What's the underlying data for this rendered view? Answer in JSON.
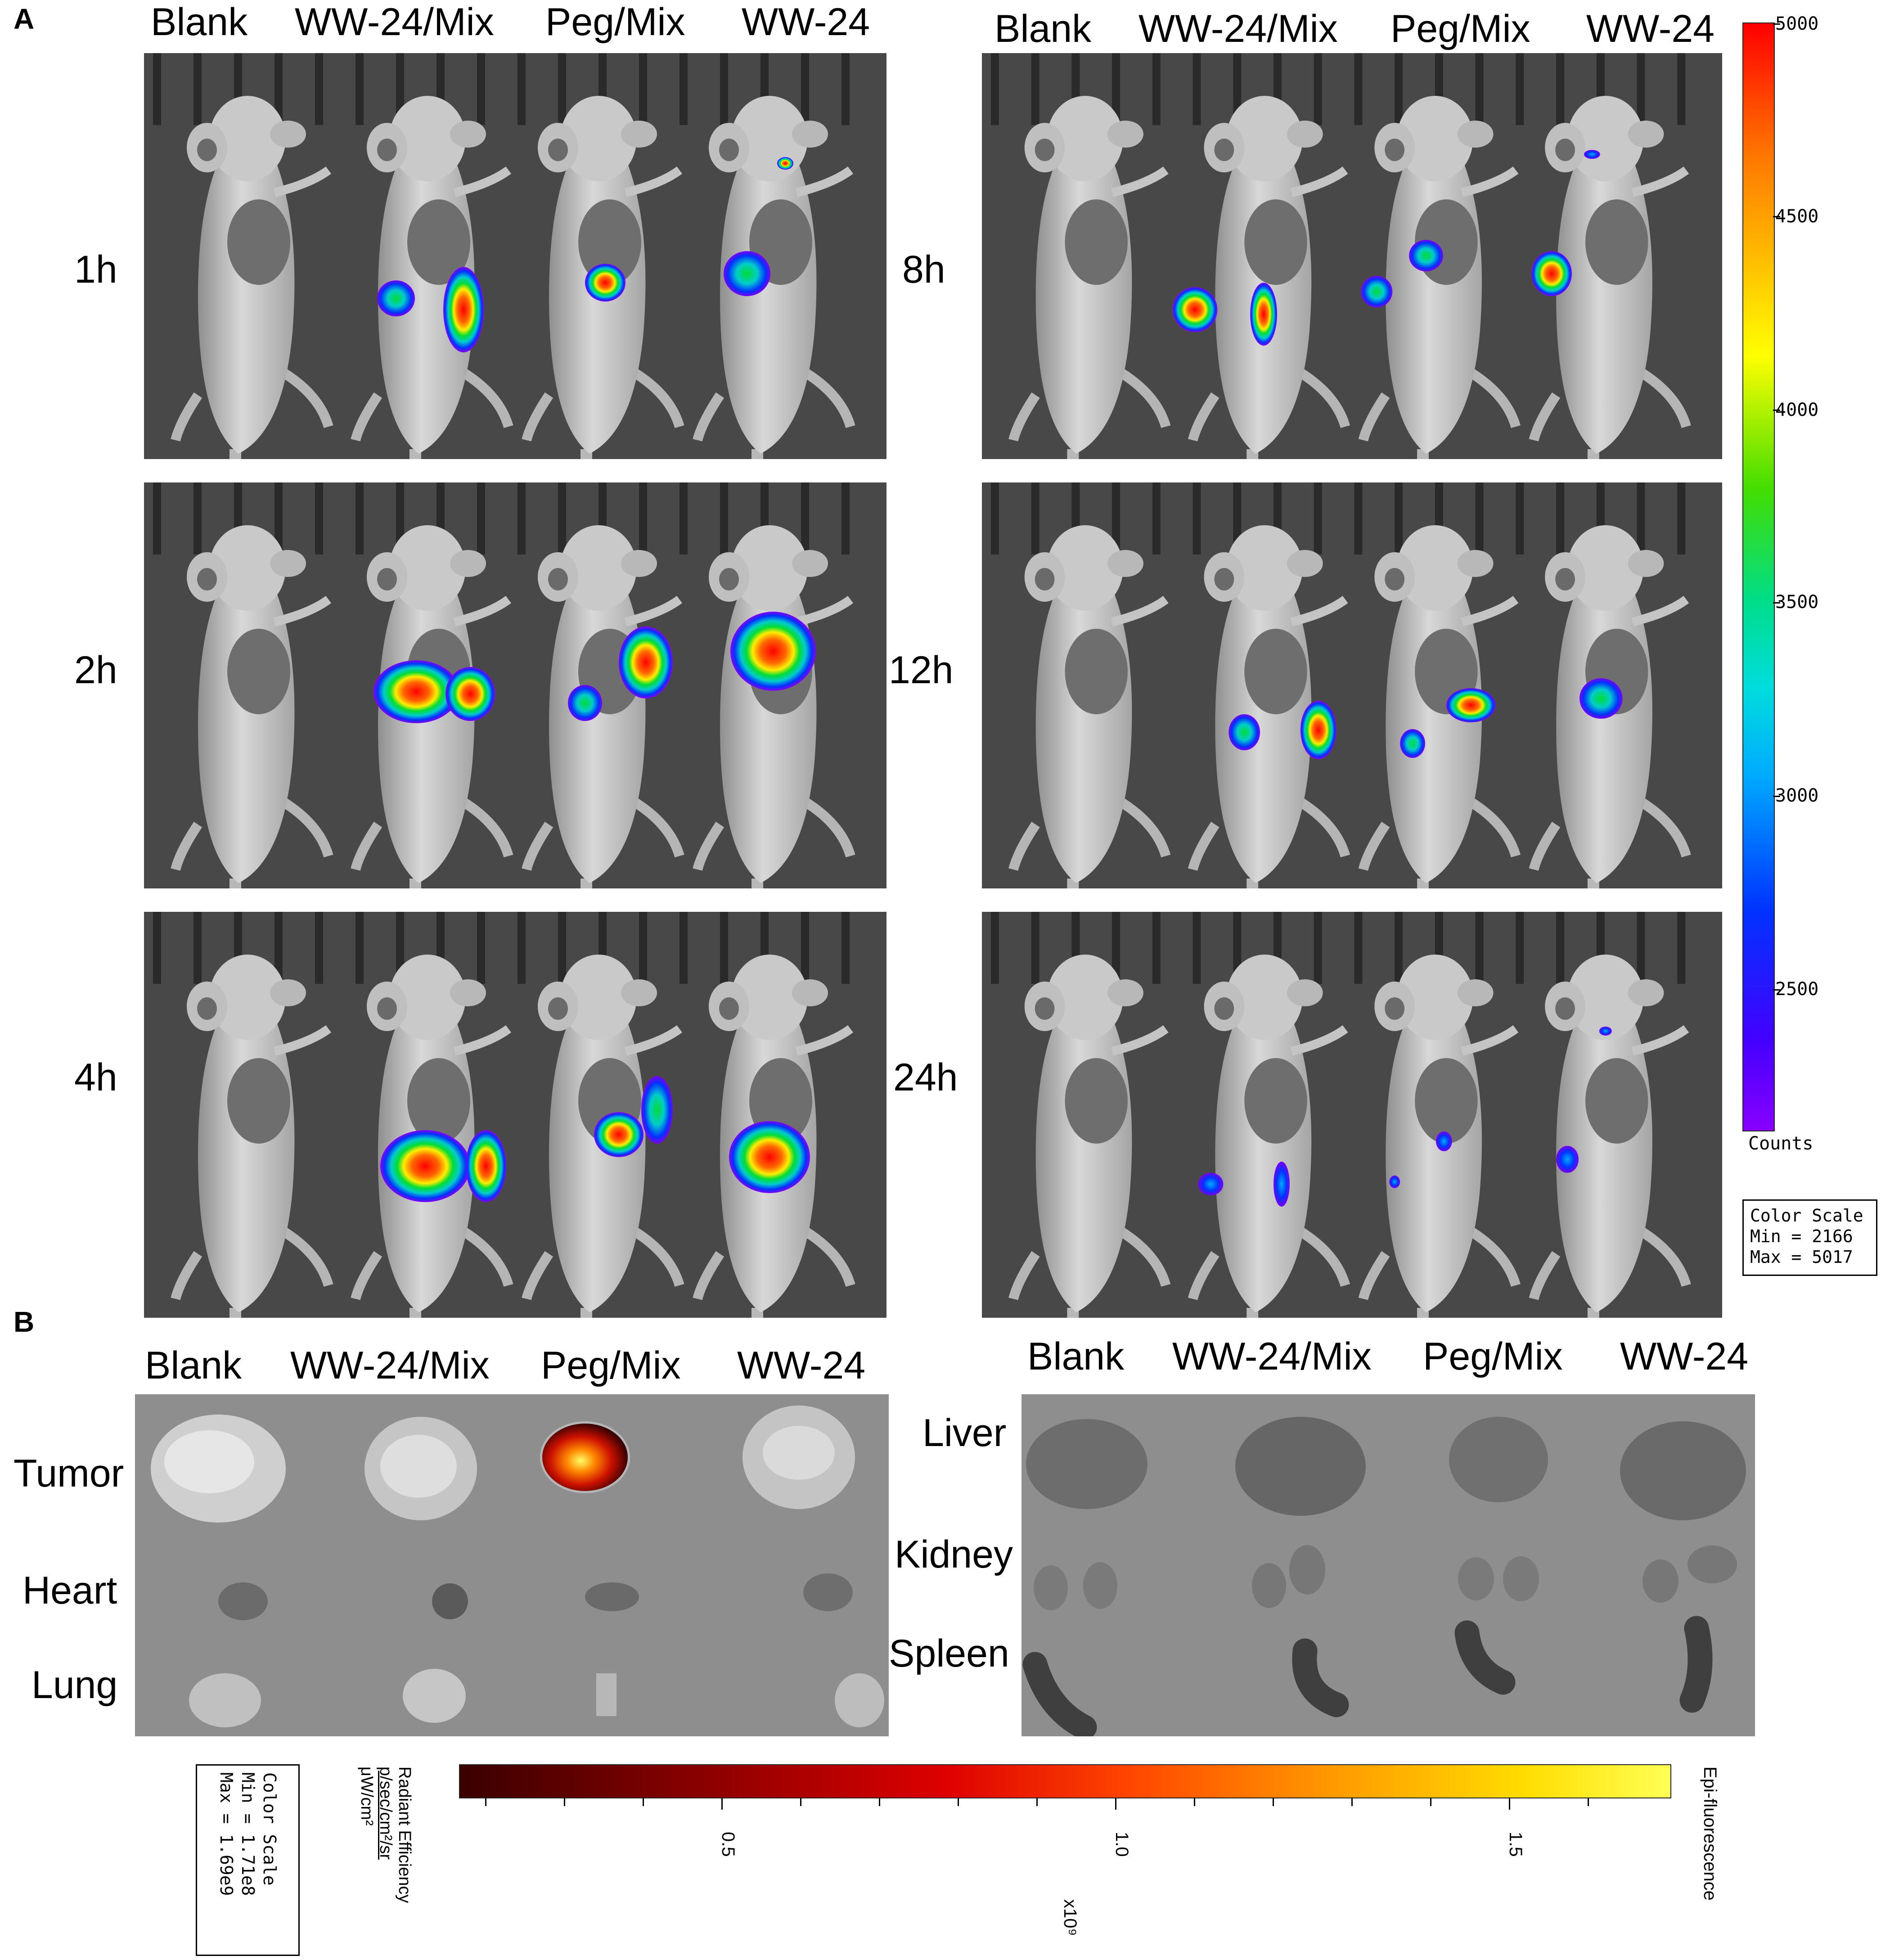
{
  "panel_a": {
    "letter": "A",
    "columns_left": [
      "Blank",
      "WW-24/Mix",
      "Peg/Mix",
      "WW-24"
    ],
    "columns_right": [
      "Blank",
      "WW-24/Mix",
      "Peg/Mix",
      "WW-24"
    ],
    "time_points_left": [
      "1h",
      "2h",
      "4h"
    ],
    "time_points_right": [
      "8h",
      "12h",
      "24h"
    ],
    "color_scale": {
      "ticks": [
        "5000",
        "4500",
        "4000",
        "3500",
        "3000",
        "2500"
      ],
      "unit_label": "Counts",
      "box_title": "Color Scale",
      "min_text": "Min = 2166",
      "max_text": "Max = 5017",
      "min_value": 2166,
      "max_value": 5017,
      "colors": [
        "#ff0000",
        "#ff8800",
        "#ffff00",
        "#00dd00",
        "#00dddd",
        "#0044ff",
        "#8800ff"
      ]
    }
  },
  "panel_b": {
    "letter": "B",
    "columns_left": [
      "Blank",
      "WW-24/Mix",
      "Peg/Mix",
      "WW-24"
    ],
    "columns_right": [
      "Blank",
      "WW-24/Mix",
      "Peg/Mix",
      "WW-24"
    ],
    "organs_left": [
      "Tumor",
      "Heart",
      "Lung"
    ],
    "organs_right": [
      "Liver",
      "Kidney",
      "Spleen"
    ],
    "color_scale": {
      "box_title": "Color Scale",
      "min_text": "Min = 1.71e8",
      "max_text": "Max = 1.69e9",
      "radiant_title": "Radiant Efficiency",
      "radiant_units_num": "p/sec/cm²/sr",
      "radiant_units_den": "μW/cm²",
      "ticks": [
        "0.5",
        "1.0",
        "1.5"
      ],
      "multiplier": "x10⁹",
      "mode": "Epi-fluorescence",
      "colors": [
        "#3a0000",
        "#aa0000",
        "#ff2200",
        "#ff8800",
        "#ffff33"
      ]
    }
  }
}
